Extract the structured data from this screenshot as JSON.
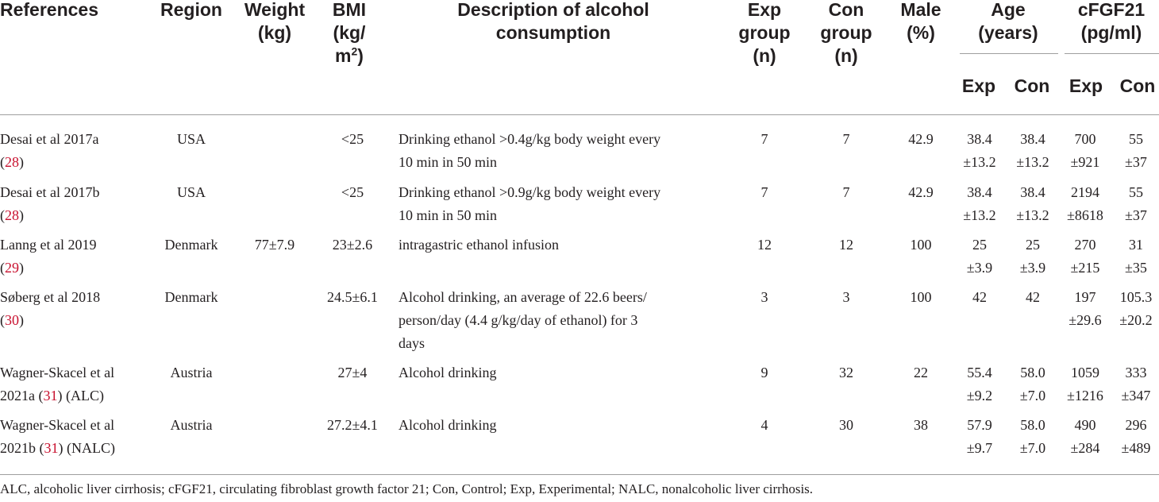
{
  "headers": {
    "references": "References",
    "region": "Region",
    "weight_1": "Weight",
    "weight_2": "(kg)",
    "bmi_1": "BMI",
    "bmi_2": "(kg/",
    "bmi_3": "m",
    "bmi_sup": "2",
    "bmi_close": ")",
    "desc_1": "Description of alcohol",
    "desc_2": "consumption",
    "exp_1": "Exp",
    "exp_2": "group",
    "exp_3": "(n)",
    "con_1": "Con",
    "con_2": "group",
    "con_3": "(n)",
    "male_1": "Male",
    "male_2": "(%)",
    "age_1": "Age",
    "age_2": "(years)",
    "cfgf_1": "cFGF21",
    "cfgf_2": "(pg/ml)",
    "sub_exp": "Exp",
    "sub_con": "Con"
  },
  "rows": [
    {
      "ref_a": "Desai et al 2017a",
      "ref_b1": "(",
      "ref_num": "28",
      "ref_b2": ")",
      "region": "USA",
      "weight": "",
      "bmi": "<25",
      "desc_1": "Drinking ethanol >0.4g/kg body weight every",
      "desc_2": "10 min in 50 min",
      "desc_3": "",
      "exp_n": "7",
      "con_n": "7",
      "male": "42.9",
      "age_exp_1": "38.4",
      "age_exp_2": "±13.2",
      "age_con_1": "38.4",
      "age_con_2": "±13.2",
      "f_exp_1": "700",
      "f_exp_2": "±921",
      "f_con_1": "55",
      "f_con_2": "±37"
    },
    {
      "ref_a": "Desai et al 2017b",
      "ref_b1": "(",
      "ref_num": "28",
      "ref_b2": ")",
      "region": "USA",
      "weight": "",
      "bmi": "<25",
      "desc_1": "Drinking ethanol >0.9g/kg body weight every",
      "desc_2": "10 min in 50 min",
      "desc_3": "",
      "exp_n": "7",
      "con_n": "7",
      "male": "42.9",
      "age_exp_1": "38.4",
      "age_exp_2": "±13.2",
      "age_con_1": "38.4",
      "age_con_2": "±13.2",
      "f_exp_1": "2194",
      "f_exp_2": "±8618",
      "f_con_1": "55",
      "f_con_2": "±37"
    },
    {
      "ref_a": "Lanng et al 2019",
      "ref_b1": "(",
      "ref_num": "29",
      "ref_b2": ")",
      "region": "Denmark",
      "weight": "77±7.9",
      "bmi": "23±2.6",
      "desc_1": "intragastric ethanol infusion",
      "desc_2": "",
      "desc_3": "",
      "exp_n": "12",
      "con_n": "12",
      "male": "100",
      "age_exp_1": "25",
      "age_exp_2": "±3.9",
      "age_con_1": "25",
      "age_con_2": "±3.9",
      "f_exp_1": "270",
      "f_exp_2": "±215",
      "f_con_1": "31",
      "f_con_2": "±35"
    },
    {
      "ref_a": "Søberg et al 2018",
      "ref_b1": "(",
      "ref_num": "30",
      "ref_b2": ")",
      "region": "Denmark",
      "weight": "",
      "bmi": "24.5±6.1",
      "desc_1": "Alcohol drinking, an average of 22.6 beers/",
      "desc_2": "person/day (4.4 g/kg/day of ethanol) for 3",
      "desc_3": "days",
      "exp_n": "3",
      "con_n": "3",
      "male": "100",
      "age_exp_1": "42",
      "age_exp_2": "",
      "age_con_1": "42",
      "age_con_2": "",
      "f_exp_1": "197",
      "f_exp_2": "±29.6",
      "f_con_1": "105.3",
      "f_con_2": "±20.2"
    },
    {
      "ref_a": "Wagner-Skacel et al",
      "ref_b1": "2021a (",
      "ref_num": "31",
      "ref_b2": ") (ALC)",
      "region": "Austria",
      "weight": "",
      "bmi": "27±4",
      "desc_1": "Alcohol drinking",
      "desc_2": "",
      "desc_3": "",
      "exp_n": "9",
      "con_n": "32",
      "male": "22",
      "age_exp_1": "55.4",
      "age_exp_2": "±9.2",
      "age_con_1": "58.0",
      "age_con_2": "±7.0",
      "f_exp_1": "1059",
      "f_exp_2": "±1216",
      "f_con_1": "333",
      "f_con_2": "±347"
    },
    {
      "ref_a": "Wagner-Skacel et al",
      "ref_b1": "2021b (",
      "ref_num": "31",
      "ref_b2": ") (NALC)",
      "region": "Austria",
      "weight": "",
      "bmi": "27.2±4.1",
      "desc_1": "Alcohol drinking",
      "desc_2": "",
      "desc_3": "",
      "exp_n": "4",
      "con_n": "30",
      "male": "38",
      "age_exp_1": "57.9",
      "age_exp_2": "±9.7",
      "age_con_1": "58.0",
      "age_con_2": "±7.0",
      "f_exp_1": "490",
      "f_exp_2": "±284",
      "f_con_1": "296",
      "f_con_2": "±489"
    }
  ],
  "footnote": "ALC, alcoholic liver cirrhosis; cFGF21, circulating fibroblast growth factor 21; Con, Control; Exp, Experimental; NALC, nonalcoholic liver cirrhosis."
}
